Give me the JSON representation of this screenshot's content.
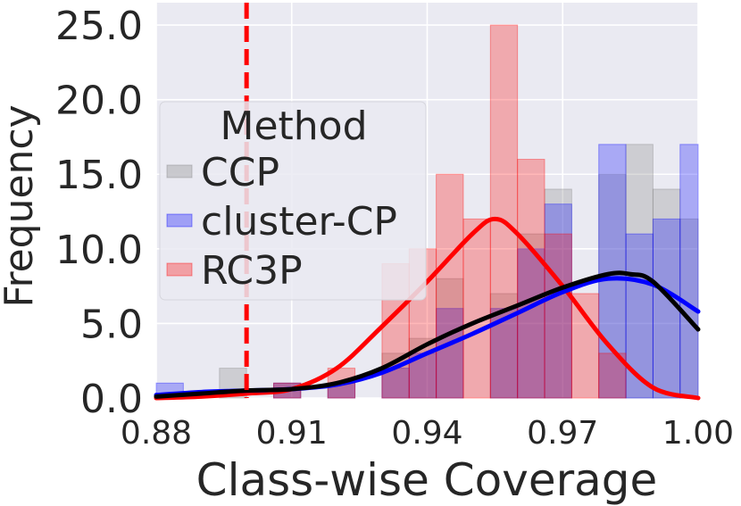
{
  "chart_data": {
    "type": "histogram",
    "xlabel": "Class-wise Coverage",
    "ylabel": "Frequency",
    "xlim": [
      0.88,
      1.0
    ],
    "ylim": [
      0,
      26.5
    ],
    "x_ticks": [
      "0.88",
      "0.91",
      "0.94",
      "0.97",
      "1.00"
    ],
    "x_tick_values": [
      0.88,
      0.91,
      0.94,
      0.97,
      1.0
    ],
    "y_ticks": [
      "0.0",
      "5.0",
      "10.0",
      "15.0",
      "20.0",
      "25.0"
    ],
    "y_tick_values": [
      0,
      5,
      10,
      15,
      20,
      25
    ],
    "grid": true,
    "background": "#eaeaf2",
    "threshold_line": {
      "x": 0.9,
      "color": "#ff0000",
      "style": "dashed"
    },
    "legend": {
      "title": "Method",
      "placement": "upper-left",
      "entries": [
        {
          "label": "CCP",
          "color": "#808080"
        },
        {
          "label": "cluster-CP",
          "color": "#0000ff"
        },
        {
          "label": "RC3P",
          "color": "#ff0000"
        }
      ]
    },
    "series": [
      {
        "name": "CCP",
        "color": "#808080",
        "kde_color": "#000000",
        "bins": [
          {
            "x0": 0.894,
            "x1": 0.9,
            "value": 2
          },
          {
            "x0": 0.906,
            "x1": 0.912,
            "value": 1
          },
          {
            "x0": 0.918,
            "x1": 0.924,
            "value": 1
          },
          {
            "x0": 0.93,
            "x1": 0.936,
            "value": 3
          },
          {
            "x0": 0.936,
            "x1": 0.942,
            "value": 4
          },
          {
            "x0": 0.942,
            "x1": 0.948,
            "value": 8
          },
          {
            "x0": 0.954,
            "x1": 0.96,
            "value": 7
          },
          {
            "x0": 0.96,
            "x1": 0.966,
            "value": 11
          },
          {
            "x0": 0.966,
            "x1": 0.972,
            "value": 14
          },
          {
            "x0": 0.978,
            "x1": 0.984,
            "value": 15
          },
          {
            "x0": 0.984,
            "x1": 0.99,
            "value": 17
          },
          {
            "x0": 0.99,
            "x1": 0.996,
            "value": 14
          },
          {
            "x0": 0.996,
            "x1": 1.0,
            "value": 12
          }
        ],
        "kde": [
          [
            0.88,
            0.1
          ],
          [
            0.89,
            0.3
          ],
          [
            0.9,
            0.5
          ],
          [
            0.91,
            0.6
          ],
          [
            0.92,
            1.0
          ],
          [
            0.93,
            2.0
          ],
          [
            0.94,
            3.6
          ],
          [
            0.95,
            5.0
          ],
          [
            0.96,
            6.2
          ],
          [
            0.97,
            7.4
          ],
          [
            0.98,
            8.3
          ],
          [
            0.985,
            8.3
          ],
          [
            0.99,
            7.8
          ],
          [
            1.0,
            4.6
          ]
        ]
      },
      {
        "name": "cluster-CP",
        "color": "#0000ff",
        "kde_color": "#0000ff",
        "bins": [
          {
            "x0": 0.88,
            "x1": 0.886,
            "value": 1
          },
          {
            "x0": 0.906,
            "x1": 0.912,
            "value": 1
          },
          {
            "x0": 0.918,
            "x1": 0.924,
            "value": 1
          },
          {
            "x0": 0.93,
            "x1": 0.936,
            "value": 2
          },
          {
            "x0": 0.936,
            "x1": 0.942,
            "value": 3
          },
          {
            "x0": 0.942,
            "x1": 0.948,
            "value": 6
          },
          {
            "x0": 0.954,
            "x1": 0.96,
            "value": 6
          },
          {
            "x0": 0.96,
            "x1": 0.966,
            "value": 10
          },
          {
            "x0": 0.966,
            "x1": 0.972,
            "value": 13
          },
          {
            "x0": 0.978,
            "x1": 0.984,
            "value": 17
          },
          {
            "x0": 0.984,
            "x1": 0.99,
            "value": 11
          },
          {
            "x0": 0.99,
            "x1": 0.996,
            "value": 12
          },
          {
            "x0": 0.996,
            "x1": 1.0,
            "value": 17
          }
        ],
        "kde": [
          [
            0.88,
            0.2
          ],
          [
            0.89,
            0.4
          ],
          [
            0.9,
            0.5
          ],
          [
            0.91,
            0.6
          ],
          [
            0.92,
            0.9
          ],
          [
            0.93,
            1.7
          ],
          [
            0.94,
            3.0
          ],
          [
            0.95,
            4.3
          ],
          [
            0.96,
            5.7
          ],
          [
            0.97,
            7.1
          ],
          [
            0.98,
            8.0
          ],
          [
            0.99,
            7.6
          ],
          [
            1.0,
            5.8
          ]
        ]
      },
      {
        "name": "RC3P",
        "color": "#ff0000",
        "kde_color": "#ff0000",
        "bins": [
          {
            "x0": 0.906,
            "x1": 0.912,
            "value": 1
          },
          {
            "x0": 0.918,
            "x1": 0.924,
            "value": 2
          },
          {
            "x0": 0.93,
            "x1": 0.936,
            "value": 9
          },
          {
            "x0": 0.936,
            "x1": 0.942,
            "value": 10
          },
          {
            "x0": 0.942,
            "x1": 0.948,
            "value": 15
          },
          {
            "x0": 0.948,
            "x1": 0.954,
            "value": 12
          },
          {
            "x0": 0.954,
            "x1": 0.96,
            "value": 25
          },
          {
            "x0": 0.96,
            "x1": 0.966,
            "value": 16
          },
          {
            "x0": 0.966,
            "x1": 0.972,
            "value": 11
          },
          {
            "x0": 0.972,
            "x1": 0.978,
            "value": 7
          },
          {
            "x0": 0.978,
            "x1": 0.984,
            "value": 3
          }
        ],
        "kde": [
          [
            0.88,
            0.0
          ],
          [
            0.89,
            0.1
          ],
          [
            0.9,
            0.3
          ],
          [
            0.91,
            0.6
          ],
          [
            0.92,
            2.0
          ],
          [
            0.93,
            4.8
          ],
          [
            0.94,
            7.8
          ],
          [
            0.95,
            11.0
          ],
          [
            0.955,
            12.0
          ],
          [
            0.96,
            11.0
          ],
          [
            0.97,
            7.5
          ],
          [
            0.98,
            3.6
          ],
          [
            0.99,
            0.7
          ],
          [
            1.0,
            0.0
          ]
        ]
      }
    ]
  }
}
